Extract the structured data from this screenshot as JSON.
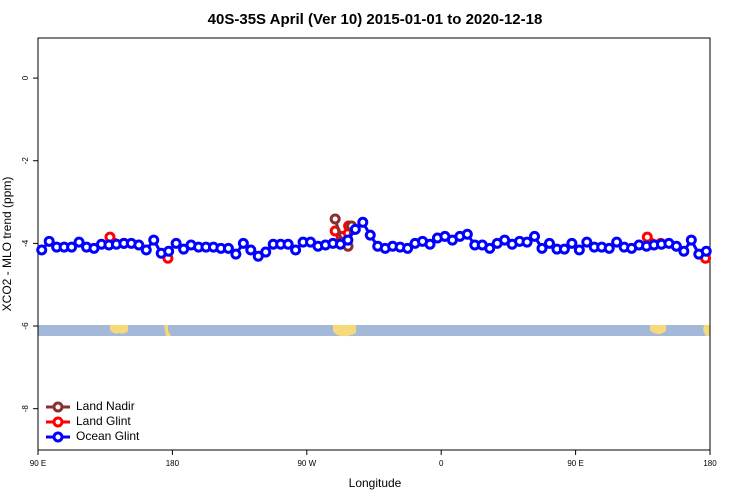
{
  "chart_data": {
    "type": "line",
    "title": "40S-35S April (Ver 10)   2015-01-01 to 2020-12-18",
    "x_label": "Longitude",
    "y_label": "XCO2 - MLO trend (ppm)",
    "xlim": [
      90,
      540
    ],
    "xticks": [
      {
        "value": 90,
        "label": "90 E"
      },
      {
        "value": 180,
        "label": "180"
      },
      {
        "value": 270,
        "label": "90 W"
      },
      {
        "value": 360,
        "label": "0"
      },
      {
        "value": 450,
        "label": "90 E"
      },
      {
        "value": 540,
        "label": "180"
      }
    ],
    "ylim": [
      -9.0,
      0.97
    ],
    "yticks": [
      0,
      -2,
      -4,
      -6,
      -8
    ],
    "legend": "bottom-left",
    "series": [
      {
        "name": "Land Nadir",
        "color": "#8b2e2e",
        "x": [
          289,
          293.6,
          297.6,
          300
        ],
        "values": [
          -3.41,
          -3.97,
          -4.07,
          -3.58
        ]
      },
      {
        "name": "Land Glint",
        "color": "#ff0000",
        "x": [
          138.2,
          147.6,
          160,
          177,
          230,
          289,
          293,
          298,
          302,
          400,
          498,
          507,
          520,
          537
        ],
        "values": [
          -3.85,
          -4.0,
          null,
          -4.36,
          null,
          -3.7,
          -3.83,
          -3.58,
          -3.66,
          null,
          -3.85,
          -4.0,
          null,
          -4.36
        ]
      },
      {
        "name": "Ocean Glint",
        "color": "#0000ff",
        "x": [
          92.5,
          97.5,
          102.5,
          107.5,
          112.5,
          117.5,
          122.5,
          127.5,
          132.5,
          137.5,
          142.5,
          147.5,
          152.5,
          157.5,
          162.5,
          167.5,
          172.5,
          177.5,
          182.5,
          187.5,
          192.5,
          197.5,
          202.5,
          207.5,
          212.5,
          217.5,
          222.5,
          227.5,
          232.5,
          237.5,
          242.5,
          247.5,
          252.5,
          257.5,
          262.5,
          267.5,
          272.5,
          277.5,
          282.5,
          287.5,
          292.5,
          297.5,
          302.5,
          307.5,
          312.5,
          317.5,
          322.5,
          327.5,
          332.5,
          337.5,
          342.5,
          347.5,
          352.5,
          357.5,
          362.5,
          367.5,
          372.5,
          377.5,
          382.5,
          387.5,
          392.5,
          397.5,
          402.5,
          407.5,
          412.5,
          417.5,
          422.5,
          427.5,
          432.5,
          437.5,
          442.5,
          447.5,
          452.5,
          457.5,
          462.5,
          467.5,
          472.5,
          477.5,
          482.5,
          487.5,
          492.5,
          497.5,
          502.5,
          507.5,
          512.5,
          517.5,
          522.5,
          527.5,
          532.5,
          537.5
        ],
        "values": [
          -4.16,
          -3.95,
          -4.09,
          -4.09,
          -4.09,
          -3.97,
          -4.09,
          -4.12,
          -4.02,
          -4.04,
          -4.02,
          -4.0,
          -4.0,
          -4.04,
          -4.16,
          -3.92,
          -4.24,
          -4.19,
          -4.0,
          -4.14,
          -4.04,
          -4.09,
          -4.09,
          -4.09,
          -4.12,
          -4.12,
          -4.26,
          -4.0,
          -4.16,
          -4.31,
          -4.21,
          -4.02,
          -4.02,
          -4.02,
          -4.16,
          -3.97,
          -3.97,
          -4.07,
          -4.04,
          -4.0,
          -4.02,
          -3.92,
          -3.66,
          -3.49,
          -3.8,
          -4.07,
          -4.12,
          -4.07,
          -4.09,
          -4.12,
          -4.0,
          -3.95,
          -4.02,
          -3.87,
          -3.83,
          -3.92,
          -3.83,
          -3.78,
          -4.04,
          -4.04,
          -4.12,
          -4.0,
          -3.92,
          -4.02,
          -3.95,
          -3.97,
          -3.83,
          -4.12,
          -4.0,
          -4.14,
          -4.14,
          -4.0,
          -4.16,
          -3.97,
          -4.09,
          -4.09,
          -4.12,
          -3.97,
          -4.09,
          -4.12,
          -4.04,
          -4.07,
          -4.04,
          -4.02,
          -4.0,
          -4.07,
          -4.19,
          -3.92,
          -4.26,
          -4.19
        ]
      }
    ]
  }
}
